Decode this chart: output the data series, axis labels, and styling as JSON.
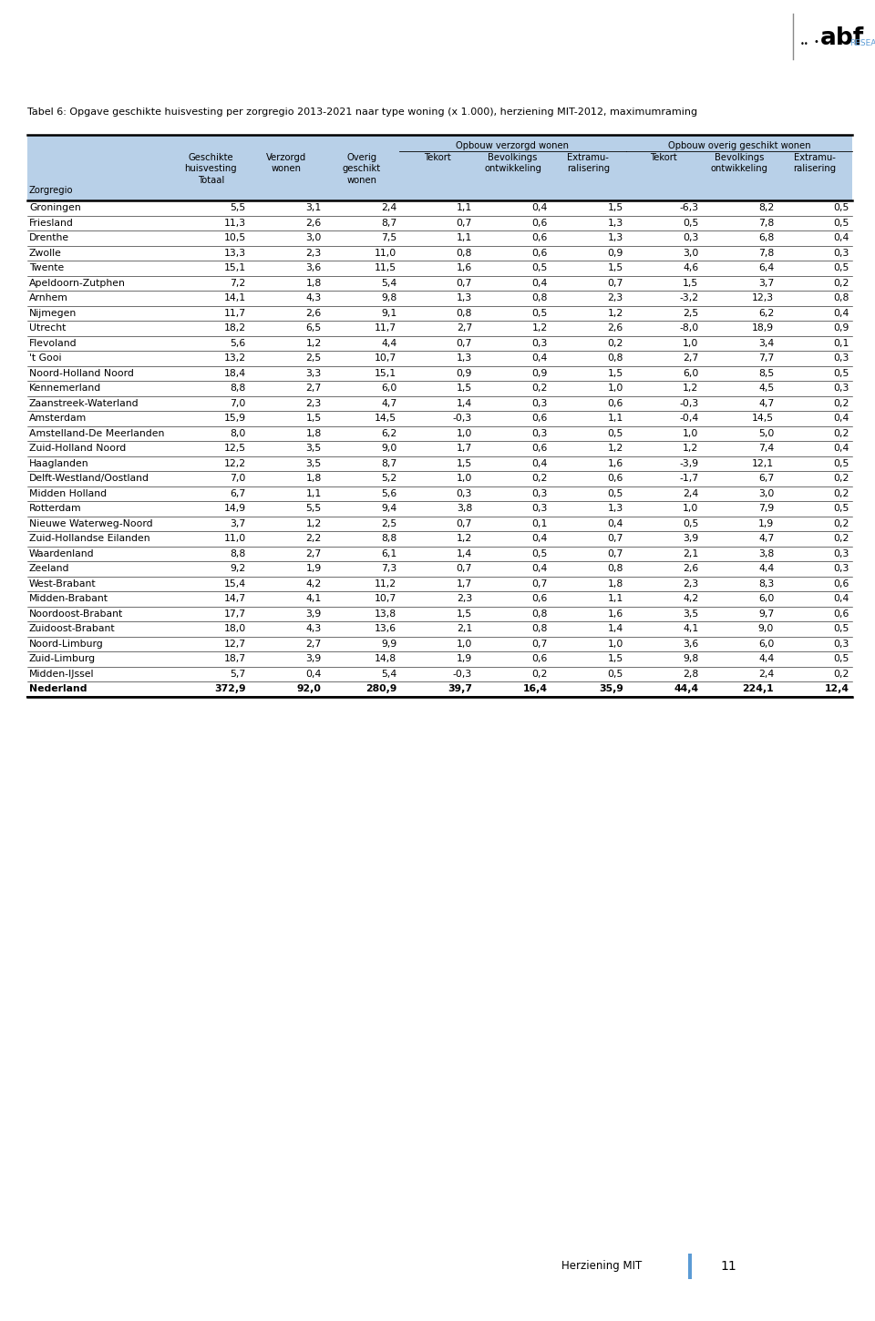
{
  "title": "Tabel 6: Opgave geschikte huisvesting per zorgregio 2013-2021 naar type woning (x 1.000), herziening MIT-2012, maximumraming",
  "header_bg_color": "#b8d0e8",
  "row_label": "Zorgregio",
  "rows": [
    [
      "Groningen",
      "5,5",
      "3,1",
      "2,4",
      "1,1",
      "0,4",
      "1,5",
      "-6,3",
      "8,2",
      "0,5"
    ],
    [
      "Friesland",
      "11,3",
      "2,6",
      "8,7",
      "0,7",
      "0,6",
      "1,3",
      "0,5",
      "7,8",
      "0,5"
    ],
    [
      "Drenthe",
      "10,5",
      "3,0",
      "7,5",
      "1,1",
      "0,6",
      "1,3",
      "0,3",
      "6,8",
      "0,4"
    ],
    [
      "Zwolle",
      "13,3",
      "2,3",
      "11,0",
      "0,8",
      "0,6",
      "0,9",
      "3,0",
      "7,8",
      "0,3"
    ],
    [
      "Twente",
      "15,1",
      "3,6",
      "11,5",
      "1,6",
      "0,5",
      "1,5",
      "4,6",
      "6,4",
      "0,5"
    ],
    [
      "Apeldoorn-Zutphen",
      "7,2",
      "1,8",
      "5,4",
      "0,7",
      "0,4",
      "0,7",
      "1,5",
      "3,7",
      "0,2"
    ],
    [
      "Arnhem",
      "14,1",
      "4,3",
      "9,8",
      "1,3",
      "0,8",
      "2,3",
      "-3,2",
      "12,3",
      "0,8"
    ],
    [
      "Nijmegen",
      "11,7",
      "2,6",
      "9,1",
      "0,8",
      "0,5",
      "1,2",
      "2,5",
      "6,2",
      "0,4"
    ],
    [
      "Utrecht",
      "18,2",
      "6,5",
      "11,7",
      "2,7",
      "1,2",
      "2,6",
      "-8,0",
      "18,9",
      "0,9"
    ],
    [
      "Flevoland",
      "5,6",
      "1,2",
      "4,4",
      "0,7",
      "0,3",
      "0,2",
      "1,0",
      "3,4",
      "0,1"
    ],
    [
      "'t Gooi",
      "13,2",
      "2,5",
      "10,7",
      "1,3",
      "0,4",
      "0,8",
      "2,7",
      "7,7",
      "0,3"
    ],
    [
      "Noord-Holland Noord",
      "18,4",
      "3,3",
      "15,1",
      "0,9",
      "0,9",
      "1,5",
      "6,0",
      "8,5",
      "0,5"
    ],
    [
      "Kennemerland",
      "8,8",
      "2,7",
      "6,0",
      "1,5",
      "0,2",
      "1,0",
      "1,2",
      "4,5",
      "0,3"
    ],
    [
      "Zaanstreek-Waterland",
      "7,0",
      "2,3",
      "4,7",
      "1,4",
      "0,3",
      "0,6",
      "-0,3",
      "4,7",
      "0,2"
    ],
    [
      "Amsterdam",
      "15,9",
      "1,5",
      "14,5",
      "-0,3",
      "0,6",
      "1,1",
      "-0,4",
      "14,5",
      "0,4"
    ],
    [
      "Amstelland-De Meerlanden",
      "8,0",
      "1,8",
      "6,2",
      "1,0",
      "0,3",
      "0,5",
      "1,0",
      "5,0",
      "0,2"
    ],
    [
      "Zuid-Holland Noord",
      "12,5",
      "3,5",
      "9,0",
      "1,7",
      "0,6",
      "1,2",
      "1,2",
      "7,4",
      "0,4"
    ],
    [
      "Haaglanden",
      "12,2",
      "3,5",
      "8,7",
      "1,5",
      "0,4",
      "1,6",
      "-3,9",
      "12,1",
      "0,5"
    ],
    [
      "Delft-Westland/Oostland",
      "7,0",
      "1,8",
      "5,2",
      "1,0",
      "0,2",
      "0,6",
      "-1,7",
      "6,7",
      "0,2"
    ],
    [
      "Midden Holland",
      "6,7",
      "1,1",
      "5,6",
      "0,3",
      "0,3",
      "0,5",
      "2,4",
      "3,0",
      "0,2"
    ],
    [
      "Rotterdam",
      "14,9",
      "5,5",
      "9,4",
      "3,8",
      "0,3",
      "1,3",
      "1,0",
      "7,9",
      "0,5"
    ],
    [
      "Nieuwe Waterweg-Noord",
      "3,7",
      "1,2",
      "2,5",
      "0,7",
      "0,1",
      "0,4",
      "0,5",
      "1,9",
      "0,2"
    ],
    [
      "Zuid-Hollandse Eilanden",
      "11,0",
      "2,2",
      "8,8",
      "1,2",
      "0,4",
      "0,7",
      "3,9",
      "4,7",
      "0,2"
    ],
    [
      "Waardenland",
      "8,8",
      "2,7",
      "6,1",
      "1,4",
      "0,5",
      "0,7",
      "2,1",
      "3,8",
      "0,3"
    ],
    [
      "Zeeland",
      "9,2",
      "1,9",
      "7,3",
      "0,7",
      "0,4",
      "0,8",
      "2,6",
      "4,4",
      "0,3"
    ],
    [
      "West-Brabant",
      "15,4",
      "4,2",
      "11,2",
      "1,7",
      "0,7",
      "1,8",
      "2,3",
      "8,3",
      "0,6"
    ],
    [
      "Midden-Brabant",
      "14,7",
      "4,1",
      "10,7",
      "2,3",
      "0,6",
      "1,1",
      "4,2",
      "6,0",
      "0,4"
    ],
    [
      "Noordoost-Brabant",
      "17,7",
      "3,9",
      "13,8",
      "1,5",
      "0,8",
      "1,6",
      "3,5",
      "9,7",
      "0,6"
    ],
    [
      "Zuidoost-Brabant",
      "18,0",
      "4,3",
      "13,6",
      "2,1",
      "0,8",
      "1,4",
      "4,1",
      "9,0",
      "0,5"
    ],
    [
      "Noord-Limburg",
      "12,7",
      "2,7",
      "9,9",
      "1,0",
      "0,7",
      "1,0",
      "3,6",
      "6,0",
      "0,3"
    ],
    [
      "Zuid-Limburg",
      "18,7",
      "3,9",
      "14,8",
      "1,9",
      "0,6",
      "1,5",
      "9,8",
      "4,4",
      "0,5"
    ],
    [
      "Midden-IJssel",
      "5,7",
      "0,4",
      "5,4",
      "-0,3",
      "0,2",
      "0,5",
      "2,8",
      "2,4",
      "0,2"
    ],
    [
      "Nederland",
      "372,9",
      "92,0",
      "280,9",
      "39,7",
      "16,4",
      "35,9",
      "44,4",
      "224,1",
      "12,4"
    ]
  ],
  "footer_text": "Herziening MIT",
  "page_number": "11",
  "bg_color": "#ffffff",
  "logo_abf_color": "#000000",
  "logo_research_color": "#5b9bd5",
  "logo_line_color": "#888888",
  "page_bar_color": "#5b9bd5"
}
